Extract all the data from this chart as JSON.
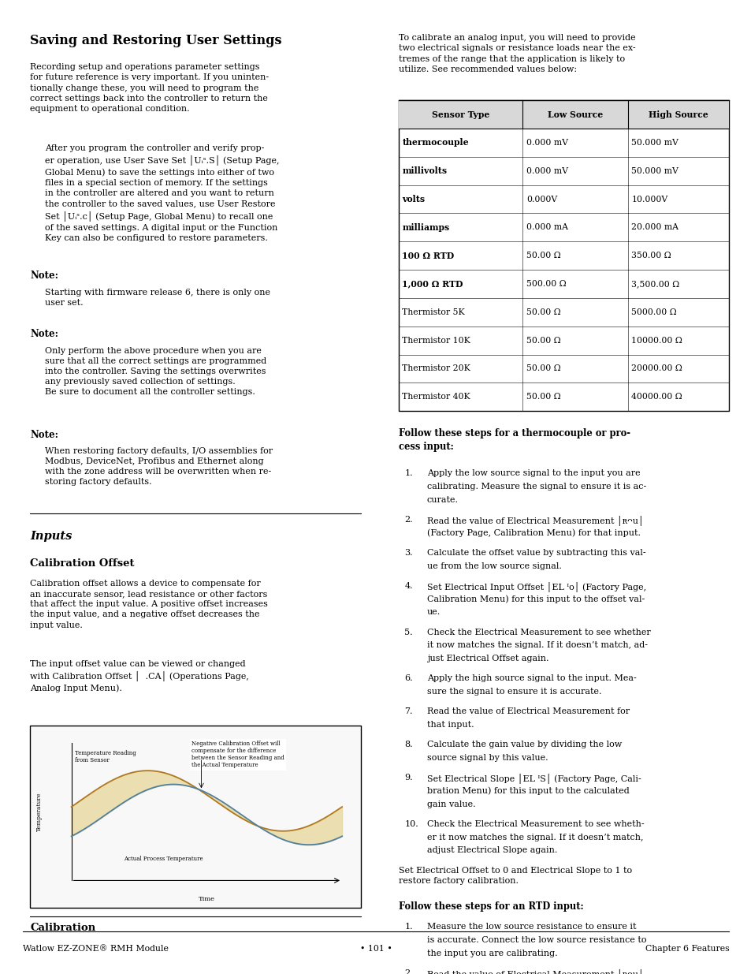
{
  "page_bg": "#ffffff",
  "title_left": "Saving and Restoring User Settings",
  "table_headers": [
    "Sensor Type",
    "Low Source",
    "High Source"
  ],
  "table_rows": [
    [
      "thermocouple",
      "0.000 mV",
      "50.000 mV"
    ],
    [
      "millivolts",
      "0.000 mV",
      "50.000 mV"
    ],
    [
      "volts",
      "0.000V",
      "10.000V"
    ],
    [
      "milliamps",
      "0.000 mA",
      "20.000 mA"
    ],
    [
      "100 Ω RTD",
      "50.00 Ω",
      "350.00 Ω"
    ],
    [
      "1,000 Ω RTD",
      "500.00 Ω",
      "3,500.00 Ω"
    ],
    [
      "Thermistor 5K",
      "50.00 Ω",
      "5000.00 Ω"
    ],
    [
      "Thermistor 10K",
      "50.00 Ω",
      "10000.00 Ω"
    ],
    [
      "Thermistor 20K",
      "50.00 Ω",
      "20000.00 Ω"
    ],
    [
      "Thermistor 40K",
      "50.00 Ω",
      "40000.00 Ω"
    ]
  ],
  "footer_left": "Watlow EZ-ZONE® RMH Module",
  "footer_center": "• 101 •",
  "footer_right": "Chapter 6 Features"
}
